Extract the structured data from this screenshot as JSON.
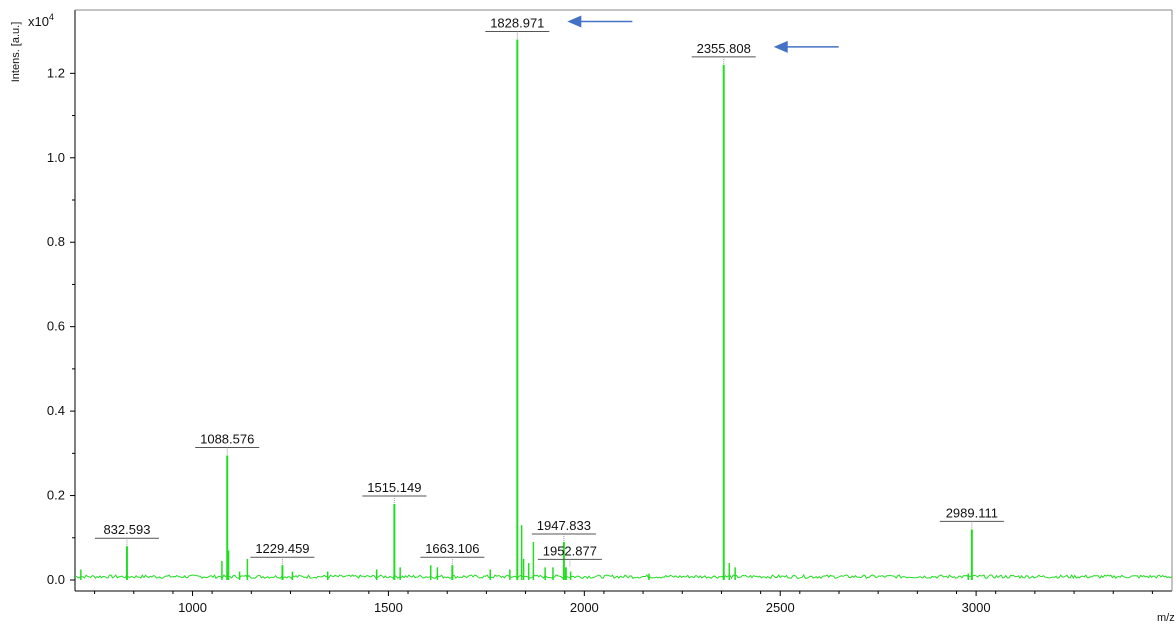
{
  "chart_data": {
    "type": "line",
    "title": "",
    "ylabel": "Intens. [a.u.]",
    "y_multiplier": "x10",
    "y_multiplier_exp": "4",
    "xlabel": "m/z",
    "xlim": [
      700,
      3500
    ],
    "ylim": [
      0.0,
      1.35
    ],
    "x_ticks": [
      1000,
      1500,
      2000,
      2500,
      3000
    ],
    "x_tick_labels": [
      "1000",
      "1500",
      "2000",
      "2500",
      "3000"
    ],
    "y_ticks": [
      0.0,
      0.2,
      0.4,
      0.6,
      0.8,
      1.0,
      1.2
    ],
    "y_tick_labels": [
      "0.0",
      "0.2",
      "0.4",
      "0.6",
      "0.8",
      "1.0",
      "1.2"
    ],
    "series_color": "#22dd22",
    "annotation_arrow_color": "#4472c4",
    "labeled_peaks": [
      {
        "mz": 832.593,
        "intensity": 0.08,
        "label": "832.593"
      },
      {
        "mz": 1088.576,
        "intensity": 0.295,
        "label": "1088.576"
      },
      {
        "mz": 1229.459,
        "intensity": 0.035,
        "label": "1229.459"
      },
      {
        "mz": 1515.149,
        "intensity": 0.18,
        "label": "1515.149"
      },
      {
        "mz": 1663.106,
        "intensity": 0.035,
        "label": "1663.106"
      },
      {
        "mz": 1828.971,
        "intensity": 1.28,
        "label": "1828.971"
      },
      {
        "mz": 1947.833,
        "intensity": 0.09,
        "label": "1947.833"
      },
      {
        "mz": 1952.877,
        "intensity": 0.03,
        "label": "1952.877"
      },
      {
        "mz": 2355.808,
        "intensity": 1.22,
        "label": "2355.808"
      },
      {
        "mz": 2989.111,
        "intensity": 0.12,
        "label": "2989.111"
      }
    ],
    "minor_peaks": [
      {
        "mz": 715,
        "intensity": 0.025
      },
      {
        "mz": 1075,
        "intensity": 0.045
      },
      {
        "mz": 1092,
        "intensity": 0.07
      },
      {
        "mz": 1120,
        "intensity": 0.02
      },
      {
        "mz": 1140,
        "intensity": 0.05
      },
      {
        "mz": 1255,
        "intensity": 0.02
      },
      {
        "mz": 1345,
        "intensity": 0.02
      },
      {
        "mz": 1470,
        "intensity": 0.025
      },
      {
        "mz": 1530,
        "intensity": 0.03
      },
      {
        "mz": 1608,
        "intensity": 0.035
      },
      {
        "mz": 1625,
        "intensity": 0.03
      },
      {
        "mz": 1760,
        "intensity": 0.025
      },
      {
        "mz": 1810,
        "intensity": 0.025
      },
      {
        "mz": 1840,
        "intensity": 0.13
      },
      {
        "mz": 1845,
        "intensity": 0.05
      },
      {
        "mz": 1858,
        "intensity": 0.04
      },
      {
        "mz": 1870,
        "intensity": 0.09
      },
      {
        "mz": 1900,
        "intensity": 0.03
      },
      {
        "mz": 1920,
        "intensity": 0.03
      },
      {
        "mz": 1965,
        "intensity": 0.02
      },
      {
        "mz": 2165,
        "intensity": 0.015
      },
      {
        "mz": 2370,
        "intensity": 0.04
      },
      {
        "mz": 2385,
        "intensity": 0.03
      },
      {
        "mz": 2980,
        "intensity": 0.015
      }
    ],
    "arrows": [
      {
        "points_to": "1828.971"
      },
      {
        "points_to": "2355.808"
      }
    ]
  }
}
